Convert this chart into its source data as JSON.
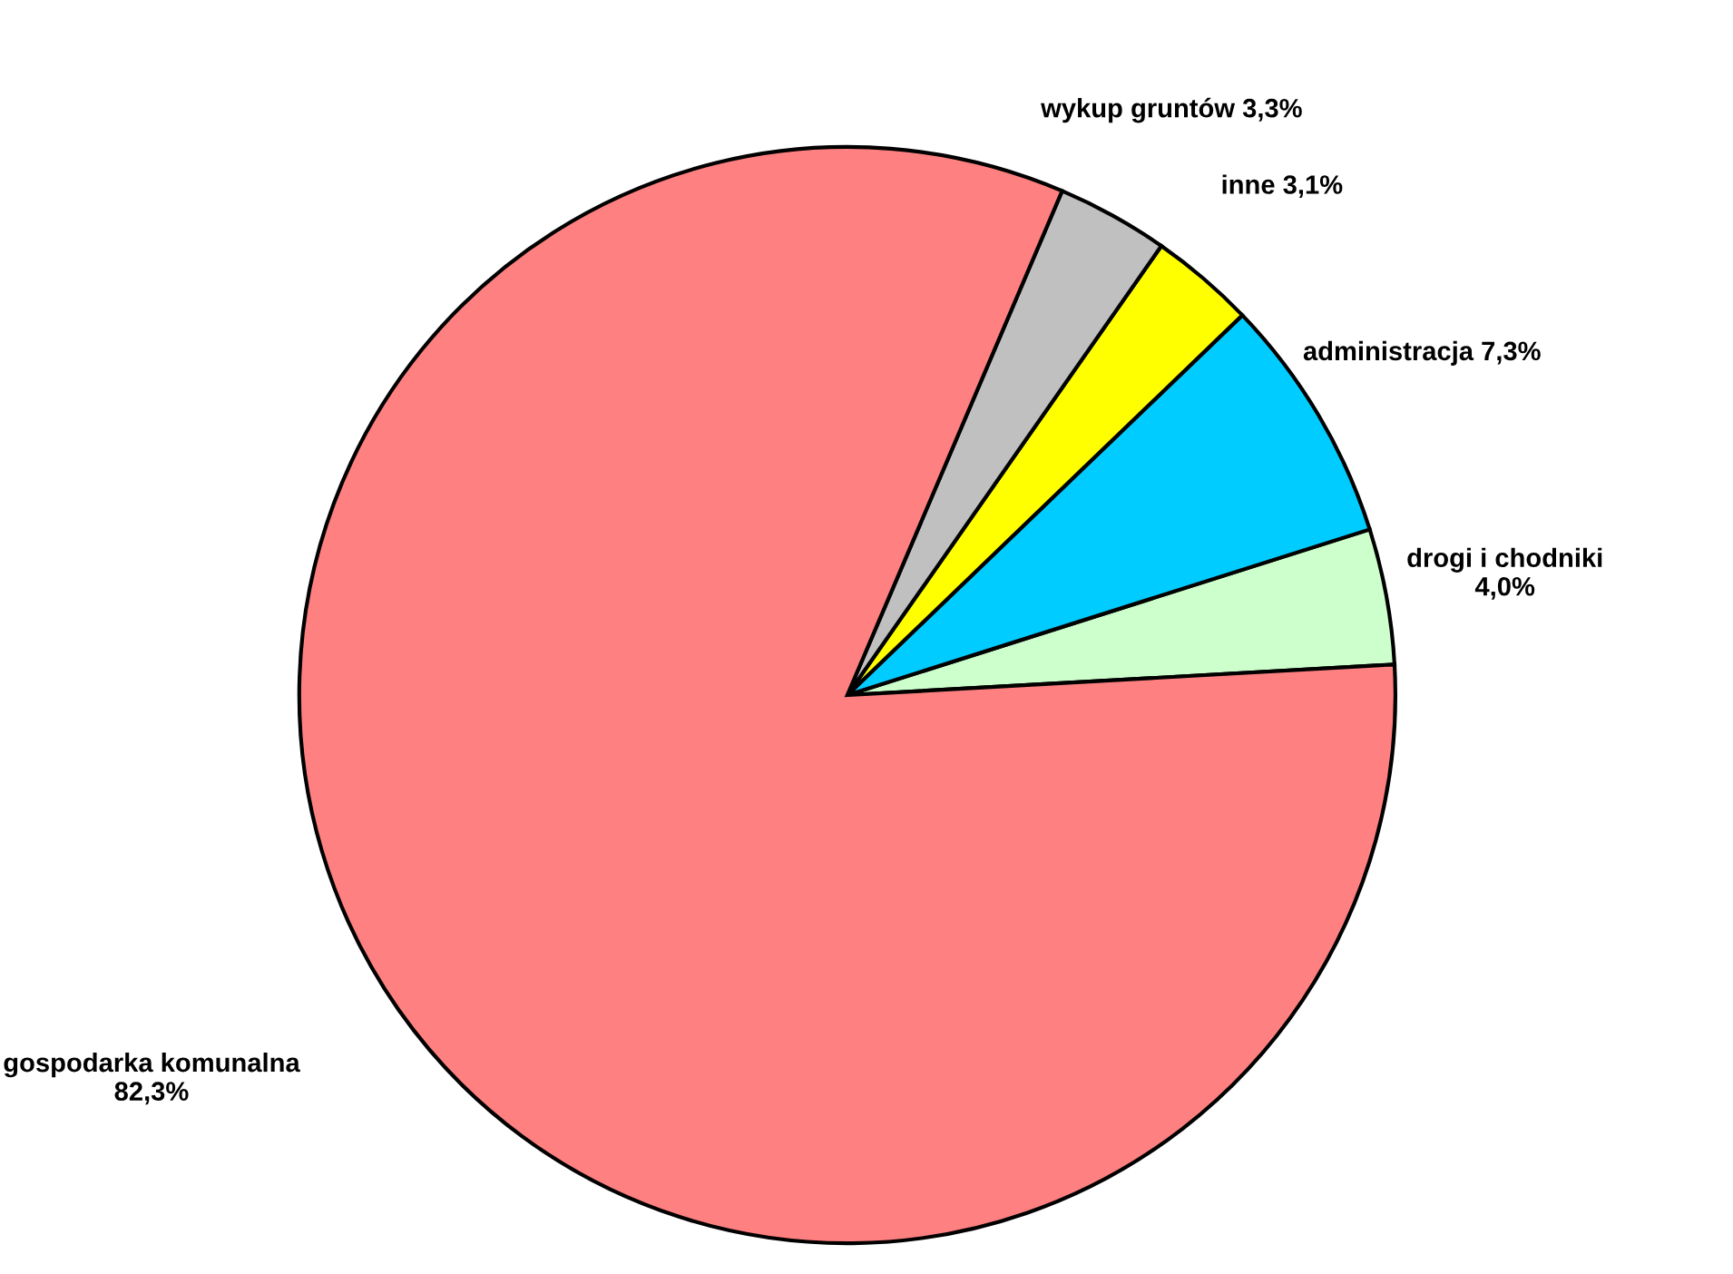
{
  "chart_data": {
    "type": "pie",
    "categories": [
      "drogi i chodniki",
      "administracja",
      "inne",
      "wykup gruntów",
      "gospodarka komunalna"
    ],
    "values": [
      4.0,
      7.3,
      3.1,
      3.3,
      82.3
    ],
    "value_labels": [
      "4,0%",
      "7,3%",
      "3,1%",
      "3,3%",
      "82,3%"
    ],
    "colors": [
      "#ccffcc",
      "#00ccff",
      "#ffff00",
      "#c0c0c0",
      "#ff8080"
    ],
    "legend": false
  }
}
